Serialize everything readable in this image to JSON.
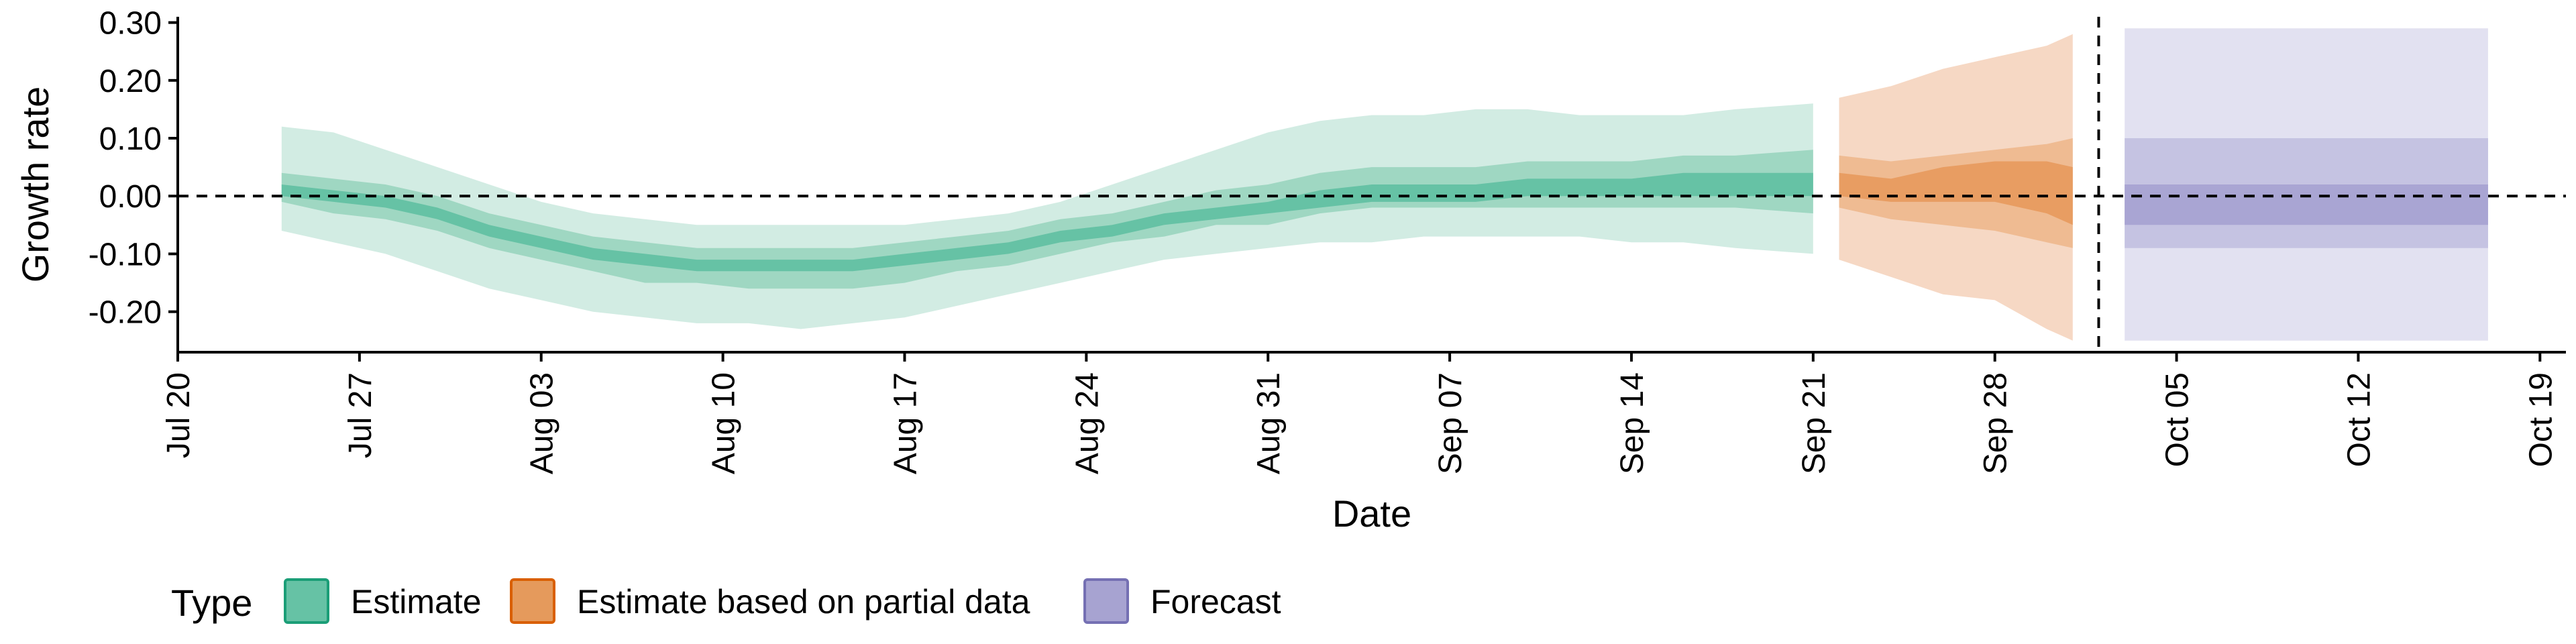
{
  "chart_data": {
    "type": "area",
    "xlabel": "Date",
    "ylabel": "Growth rate",
    "xlim": [
      "2020-07-20",
      "2020-10-20"
    ],
    "ylim": [
      -0.27,
      0.31
    ],
    "x_ticks": [
      "2020-07-20",
      "2020-07-27",
      "2020-08-03",
      "2020-08-10",
      "2020-08-17",
      "2020-08-24",
      "2020-08-31",
      "2020-09-07",
      "2020-09-14",
      "2020-09-21",
      "2020-09-28",
      "2020-10-05",
      "2020-10-12",
      "2020-10-19"
    ],
    "x_tick_labels": [
      "Jul 20",
      "Jul 27",
      "Aug 03",
      "Aug 10",
      "Aug 17",
      "Aug 24",
      "Aug 31",
      "Sep 07",
      "Sep 14",
      "Sep 21",
      "Sep 28",
      "Oct 05",
      "Oct 12",
      "Oct 19"
    ],
    "y_ticks": [
      0.3,
      0.2,
      0.1,
      0.0,
      -0.1,
      -0.2
    ],
    "y_tick_labels": [
      "0.30",
      "0.20",
      "0.10",
      "0.00",
      "-0.10",
      "-0.20"
    ],
    "reference_hline": 0,
    "reference_vline": "2020-10-02",
    "grid": false,
    "legend": {
      "title": "Type",
      "position": "bottom-left",
      "items": [
        {
          "label": "Estimate",
          "color": "#1b9e77",
          "fill": "#66c2a5"
        },
        {
          "label": "Estimate based on partial data",
          "color": "#d95f02",
          "fill": "#e59a5c"
        },
        {
          "label": "Forecast",
          "color": "#7570b3",
          "fill": "#a7a3d1"
        }
      ]
    },
    "band_colors": {
      "Estimate": [
        "#d2ece3",
        "#9fd7c2",
        "#66c2a5"
      ],
      "Estimate based on partial data": [
        "#f6d8c4",
        "#efbb92",
        "#e89d62"
      ],
      "Forecast": [
        "#e2e1f1",
        "#c5c3e2",
        "#a9a5d3"
      ]
    },
    "series": [
      {
        "name": "Estimate",
        "x": [
          "2020-07-24",
          "2020-07-26",
          "2020-07-28",
          "2020-07-30",
          "2020-08-01",
          "2020-08-03",
          "2020-08-05",
          "2020-08-07",
          "2020-08-09",
          "2020-08-11",
          "2020-08-13",
          "2020-08-15",
          "2020-08-17",
          "2020-08-19",
          "2020-08-21",
          "2020-08-23",
          "2020-08-25",
          "2020-08-27",
          "2020-08-29",
          "2020-08-31",
          "2020-09-02",
          "2020-09-04",
          "2020-09-06",
          "2020-09-08",
          "2020-09-10",
          "2020-09-12",
          "2020-09-14",
          "2020-09-16",
          "2020-09-18",
          "2020-09-21"
        ],
        "outer_lower": [
          -0.06,
          -0.08,
          -0.1,
          -0.13,
          -0.16,
          -0.18,
          -0.2,
          -0.21,
          -0.22,
          -0.22,
          -0.23,
          -0.22,
          -0.21,
          -0.19,
          -0.17,
          -0.15,
          -0.13,
          -0.11,
          -0.1,
          -0.09,
          -0.08,
          -0.08,
          -0.07,
          -0.07,
          -0.07,
          -0.07,
          -0.08,
          -0.08,
          -0.09,
          -0.1
        ],
        "inner_lower": [
          -0.01,
          -0.03,
          -0.04,
          -0.06,
          -0.09,
          -0.11,
          -0.13,
          -0.15,
          -0.15,
          -0.16,
          -0.16,
          -0.16,
          -0.15,
          -0.13,
          -0.12,
          -0.1,
          -0.08,
          -0.07,
          -0.05,
          -0.05,
          -0.03,
          -0.02,
          -0.02,
          -0.02,
          -0.02,
          -0.02,
          -0.02,
          -0.02,
          -0.02,
          -0.03
        ],
        "median_lower": [
          0.0,
          -0.01,
          -0.02,
          -0.04,
          -0.07,
          -0.09,
          -0.11,
          -0.12,
          -0.13,
          -0.13,
          -0.13,
          -0.13,
          -0.12,
          -0.11,
          -0.1,
          -0.08,
          -0.07,
          -0.05,
          -0.04,
          -0.03,
          -0.02,
          -0.01,
          -0.01,
          -0.01,
          0.0,
          0.0,
          0.0,
          0.0,
          0.0,
          0.0
        ],
        "median_upper": [
          0.02,
          0.01,
          0.0,
          -0.02,
          -0.05,
          -0.07,
          -0.09,
          -0.1,
          -0.11,
          -0.11,
          -0.11,
          -0.11,
          -0.1,
          -0.09,
          -0.08,
          -0.06,
          -0.05,
          -0.03,
          -0.02,
          -0.01,
          0.01,
          0.02,
          0.02,
          0.02,
          0.03,
          0.03,
          0.03,
          0.04,
          0.04,
          0.04
        ],
        "inner_upper": [
          0.04,
          0.03,
          0.02,
          0.0,
          -0.03,
          -0.05,
          -0.07,
          -0.08,
          -0.09,
          -0.09,
          -0.09,
          -0.09,
          -0.08,
          -0.07,
          -0.06,
          -0.04,
          -0.03,
          -0.01,
          0.01,
          0.02,
          0.04,
          0.05,
          0.05,
          0.05,
          0.06,
          0.06,
          0.06,
          0.07,
          0.07,
          0.08
        ],
        "outer_upper": [
          0.12,
          0.11,
          0.08,
          0.05,
          0.02,
          -0.01,
          -0.03,
          -0.04,
          -0.05,
          -0.05,
          -0.05,
          -0.05,
          -0.05,
          -0.04,
          -0.03,
          -0.01,
          0.02,
          0.05,
          0.08,
          0.11,
          0.13,
          0.14,
          0.14,
          0.15,
          0.15,
          0.14,
          0.14,
          0.14,
          0.15,
          0.16
        ]
      },
      {
        "name": "Estimate based on partial data",
        "x": [
          "2020-09-22",
          "2020-09-24",
          "2020-09-26",
          "2020-09-28",
          "2020-09-30",
          "2020-10-01"
        ],
        "outer_lower": [
          -0.11,
          -0.14,
          -0.17,
          -0.18,
          -0.23,
          -0.25
        ],
        "inner_lower": [
          -0.02,
          -0.04,
          -0.05,
          -0.06,
          -0.08,
          -0.09
        ],
        "median_lower": [
          0.0,
          -0.01,
          -0.01,
          -0.01,
          -0.03,
          -0.05
        ],
        "median_upper": [
          0.04,
          0.03,
          0.05,
          0.06,
          0.06,
          0.05
        ],
        "inner_upper": [
          0.07,
          0.06,
          0.07,
          0.08,
          0.09,
          0.1
        ],
        "outer_upper": [
          0.17,
          0.19,
          0.22,
          0.24,
          0.26,
          0.28
        ]
      },
      {
        "name": "Forecast",
        "x": [
          "2020-10-03",
          "2020-10-17"
        ],
        "outer_lower": [
          -0.25,
          -0.25
        ],
        "inner_lower": [
          -0.09,
          -0.09
        ],
        "median_lower": [
          -0.05,
          -0.05
        ],
        "median_upper": [
          0.02,
          0.02
        ],
        "inner_upper": [
          0.1,
          0.1
        ],
        "outer_upper": [
          0.29,
          0.29
        ]
      }
    ]
  }
}
